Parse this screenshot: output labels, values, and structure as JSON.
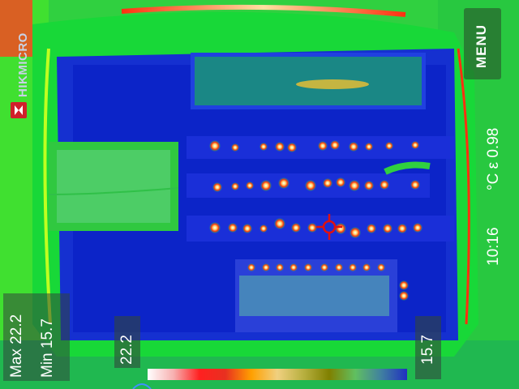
{
  "brand": {
    "name": "HIKMICRO",
    "color": "#c8d2e6",
    "mark_color": "#d0202a"
  },
  "menu": {
    "label": "MENU"
  },
  "status": {
    "emissivity": "ε 0.98",
    "unit": "°C",
    "time": "10:16"
  },
  "stats": {
    "max_label": "Max",
    "max_value": "22.2",
    "min_label": "Min",
    "min_value": "15.7"
  },
  "scale": {
    "max": "22.2",
    "min": "15.7",
    "palette_colors": [
      "#ffffff",
      "#f7b0b0",
      "#ff2020",
      "#e83020",
      "#ffa000",
      "#f0d080",
      "#b8b040",
      "#808000",
      "#60c060",
      "#4080a0",
      "#2030c0"
    ]
  },
  "colors": {
    "background": "#0a1fb5",
    "panel_green": "#20e040",
    "hot": "#ff3010",
    "crosshair": "#e01010"
  }
}
